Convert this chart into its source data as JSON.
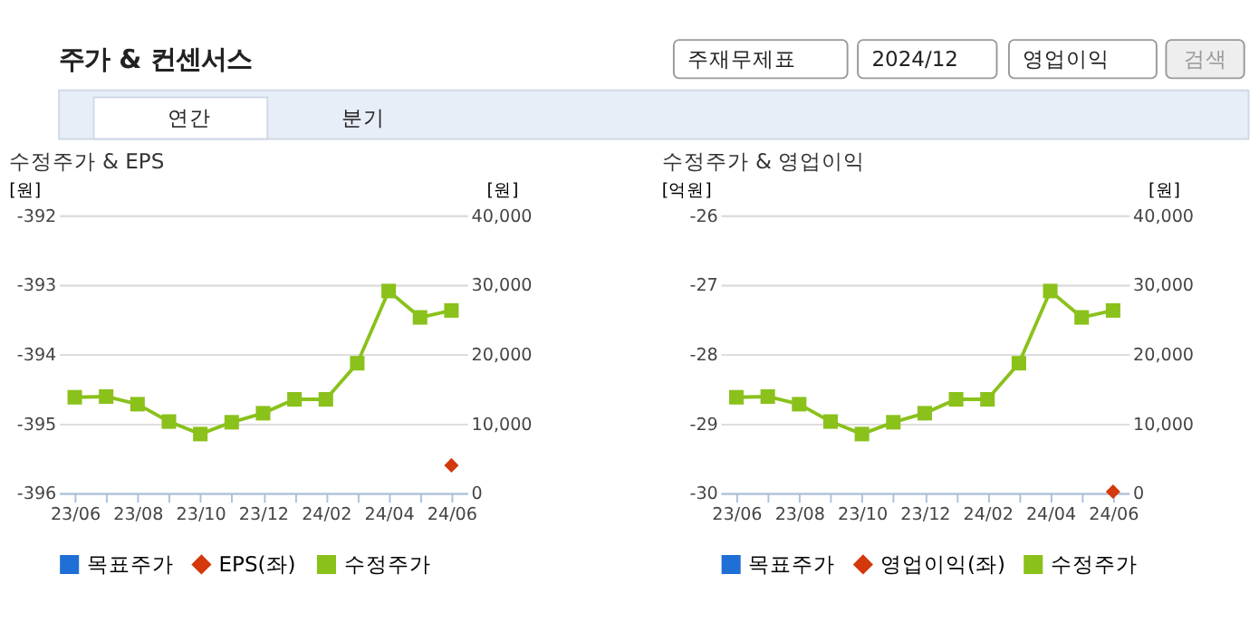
{
  "chart_data": [
    {
      "type": "line",
      "title": "수정주가 & EPS",
      "ylabel": "[원]",
      "y2label": "[원]",
      "annotations": [
        "주가 & 컨센서스",
        "주재무제표",
        "2024/12",
        "영업이익",
        "검색",
        "연간",
        "분기"
      ],
      "categories": [
        "23/06",
        null,
        "23/08",
        null,
        "23/10",
        null,
        "23/12",
        null,
        "24/02",
        null,
        "24/04",
        null,
        "24/06"
      ],
      "ylim": [
        -396,
        -392
      ],
      "yticks": [
        -396,
        -395,
        -394,
        -393,
        -392
      ],
      "y2lim": [
        0,
        40000
      ],
      "y2ticks": [
        0,
        {
          "value": 10000,
          "label": "10,000"
        },
        {
          "value": 20000,
          "label": "20,000"
        },
        {
          "value": 30000,
          "label": "30,000"
        },
        {
          "value": 40000,
          "label": "40,000"
        }
      ],
      "grid": "y",
      "legend": "bottom",
      "series": [
        {
          "name": "목표주가",
          "type": "bar",
          "color": "#1f6fd6",
          "values": [
            null,
            null,
            null,
            null,
            null,
            null,
            null,
            null,
            null,
            null,
            null,
            null,
            null
          ]
        },
        {
          "name": "EPS(좌)",
          "type": "scatter",
          "marker": "diamond",
          "color": "#d4380d",
          "values": [
            null,
            null,
            null,
            null,
            null,
            null,
            null,
            null,
            null,
            null,
            null,
            null,
            -395.6
          ]
        },
        {
          "name": "수정주가",
          "marker": "square",
          "axis": "y2",
          "color": "#8ac11b",
          "values": [
            13800,
            13900,
            12800,
            10300,
            8500,
            10200,
            11500,
            13500,
            13500,
            18700,
            29100,
            25300,
            26300
          ]
        }
      ]
    },
    {
      "type": "line",
      "title": "수정주가 & 영업이익",
      "ylabel": "[억원]",
      "y2label": "[원]",
      "categories": [
        "23/06",
        null,
        "23/08",
        null,
        "23/10",
        null,
        "23/12",
        null,
        "24/02",
        null,
        "24/04",
        null,
        "24/06"
      ],
      "ylim": [
        -30,
        -26
      ],
      "yticks": [
        -30,
        -29,
        -28,
        -27,
        -26
      ],
      "y2lim": [
        0,
        40000
      ],
      "y2ticks": [
        0,
        {
          "value": 10000,
          "label": "10,000"
        },
        {
          "value": 20000,
          "label": "20,000"
        },
        {
          "value": 30000,
          "label": "30,000"
        },
        {
          "value": 40000,
          "label": "40,000"
        }
      ],
      "grid": "y",
      "legend": "bottom",
      "series": [
        {
          "name": "목표주가",
          "type": "bar",
          "color": "#1f6fd6",
          "values": [
            null,
            null,
            null,
            null,
            null,
            null,
            null,
            null,
            null,
            null,
            null,
            null,
            null
          ]
        },
        {
          "name": "영업이익(좌)",
          "type": "scatter",
          "marker": "diamond",
          "color": "#d4380d",
          "values": [
            null,
            null,
            null,
            null,
            null,
            null,
            null,
            null,
            null,
            null,
            null,
            null,
            -29.98
          ]
        },
        {
          "name": "수정주가",
          "marker": "square",
          "axis": "y2",
          "color": "#8ac11b",
          "values": [
            13800,
            13900,
            12800,
            10300,
            8500,
            10200,
            11500,
            13500,
            13500,
            18700,
            29100,
            25300,
            26300
          ]
        }
      ]
    }
  ]
}
